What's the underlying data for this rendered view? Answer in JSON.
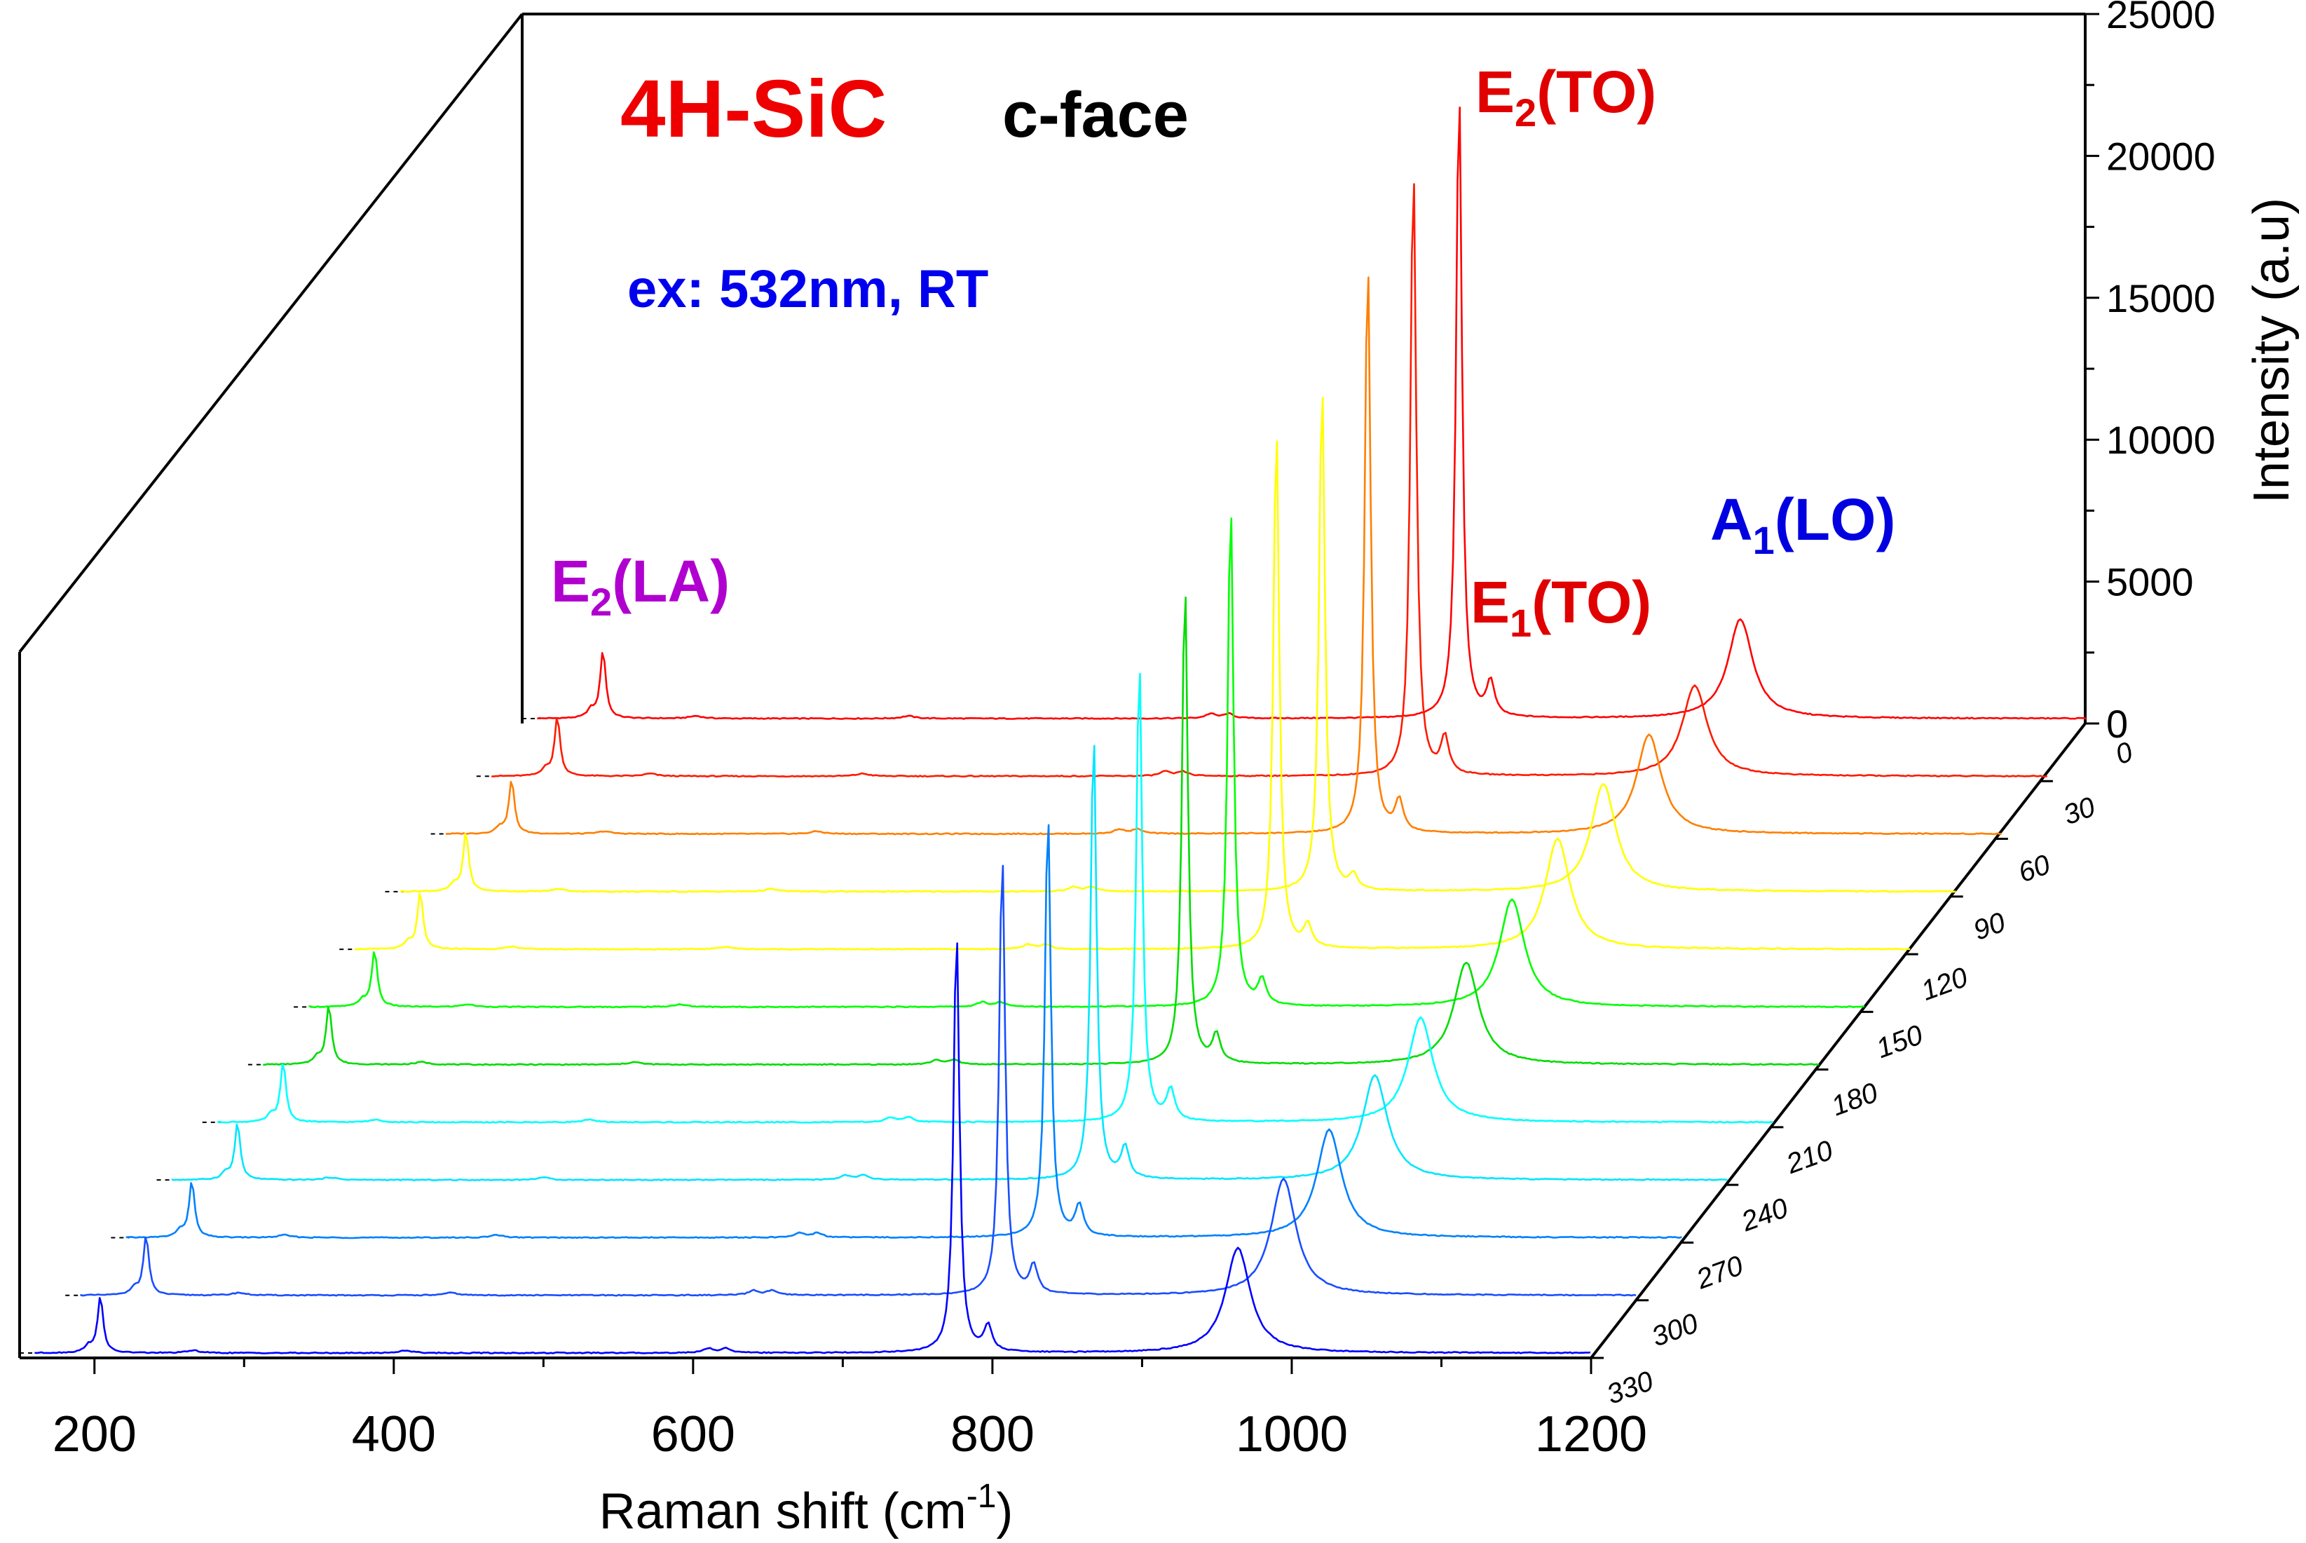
{
  "chart_data": {
    "type": "line",
    "title": "4H-SiC",
    "subtitle": "c-face",
    "condition": "ex: 532nm, RT",
    "xlabel": "Raman shift (cm",
    "xlabel_sup": "-1",
    "xlabel_end": ")",
    "ylabel": "Intensity (a.u)",
    "xlim": [
      150,
      1200
    ],
    "ylim": [
      0,
      25000
    ],
    "x_ticks": [
      "200",
      "400",
      "600",
      "800",
      "1000",
      "1200"
    ],
    "y_ticks": [
      "0",
      "5000",
      "10000",
      "15000",
      "20000",
      "25000"
    ],
    "depth_ticks": [
      "0",
      "30",
      "60",
      "90",
      "120",
      "150",
      "180",
      "210",
      "240",
      "270",
      "300",
      "330"
    ],
    "peaks": [
      {
        "label": "E",
        "sub": "2",
        "rest": "(LA)",
        "position": 204,
        "color": "#b000d0"
      },
      {
        "label": "E",
        "sub": "2",
        "rest": "(TO)",
        "position": 776,
        "color": "#e00000"
      },
      {
        "label": "E",
        "sub": "1",
        "rest": "(TO)",
        "position": 797,
        "color": "#e00000"
      },
      {
        "label": "A",
        "sub": "1",
        "rest": "(LO)",
        "position": 964,
        "color": "#0000e0"
      }
    ],
    "series": [
      {
        "name": "0",
        "color": "#ff0000",
        "E2LA": 2400,
        "E2TO": 22500,
        "E1TO": 1200,
        "A1LO": 3500,
        "A1LO_pos": 964
      },
      {
        "name": "30",
        "color": "#ff1a00",
        "E2LA": 2100,
        "E2TO": 21800,
        "E1TO": 1300,
        "A1LO": 3200,
        "A1LO_pos": 964
      },
      {
        "name": "60",
        "color": "#ff7f00",
        "E2LA": 1900,
        "E2TO": 20500,
        "E1TO": 1100,
        "A1LO": 3500,
        "A1LO_pos": 964
      },
      {
        "name": "90",
        "color": "#ffff00",
        "E2LA": 2100,
        "E2TO": 18200,
        "E1TO": 500,
        "A1LO": 3800,
        "A1LO_pos": 964
      },
      {
        "name": "120",
        "color": "#ffff00",
        "E2LA": 2000,
        "E2TO": 18700,
        "E1TO": 800,
        "A1LO": 3900,
        "A1LO_pos": 964
      },
      {
        "name": "150",
        "color": "#00ff00",
        "E2LA": 2000,
        "E2TO": 18000,
        "E1TO": 900,
        "A1LO": 3800,
        "A1LO_pos": 964
      },
      {
        "name": "180",
        "color": "#00dd00",
        "E2LA": 2100,
        "E2TO": 17200,
        "E1TO": 1000,
        "A1LO": 3600,
        "A1LO_pos": 964
      },
      {
        "name": "210",
        "color": "#00ffff",
        "E2LA": 2100,
        "E2TO": 16500,
        "E1TO": 1100,
        "A1LO": 3700,
        "A1LO_pos": 964
      },
      {
        "name": "240",
        "color": "#00e6ff",
        "E2LA": 2000,
        "E2TO": 16000,
        "E1TO": 1100,
        "A1LO": 3700,
        "A1LO_pos": 964
      },
      {
        "name": "270",
        "color": "#0080ff",
        "E2LA": 2000,
        "E2TO": 15200,
        "E1TO": 1100,
        "A1LO": 3800,
        "A1LO_pos": 964
      },
      {
        "name": "300",
        "color": "#1a4dff",
        "E2LA": 2100,
        "E2TO": 15800,
        "E1TO": 1000,
        "A1LO": 4100,
        "A1LO_pos": 964
      },
      {
        "name": "330",
        "color": "#0000ff",
        "E2LA": 2000,
        "E2TO": 15100,
        "E1TO": 900,
        "A1LO": 3700,
        "A1LO_pos": 964
      }
    ]
  }
}
